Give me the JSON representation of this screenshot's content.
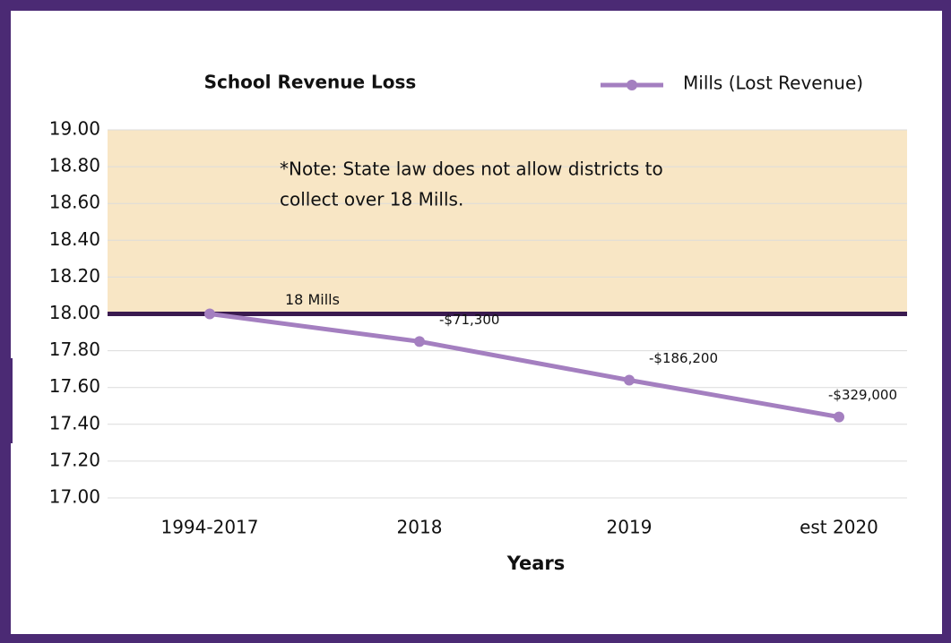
{
  "chart_data": {
    "type": "line",
    "title": "School Revenue Loss",
    "x_label": "Years",
    "categories": [
      "1994-2017",
      "2018",
      "2019",
      "est 2020"
    ],
    "series": [
      {
        "name": "Mills (Lost Revenue)",
        "color": "#a47fc0",
        "values": [
          18.0,
          17.85,
          17.64,
          17.44
        ]
      }
    ],
    "point_annotations": [
      null,
      "-$71,300",
      "-$186,200",
      "-$329,000"
    ],
    "ylim": [
      17,
      19
    ],
    "yticks": [
      {
        "value": 17,
        "label": "17.00"
      },
      {
        "value": 17.2,
        "label": "17.20"
      },
      {
        "value": 17.4,
        "label": "17.40"
      },
      {
        "value": 17.6,
        "label": "17.60"
      },
      {
        "value": 17.8,
        "label": "17.80"
      },
      {
        "value": 18,
        "label": "18.00"
      },
      {
        "value": 18.2,
        "label": "18.20"
      },
      {
        "value": 18.4,
        "label": "18.40"
      },
      {
        "value": 18.6,
        "label": "18.60"
      },
      {
        "value": 18.8,
        "label": "18.80"
      },
      {
        "value": 19,
        "label": "19.00"
      }
    ],
    "grid": true,
    "legend": "top-right",
    "shaded_range": {
      "from": 18,
      "to": 19,
      "color": "#f8e6c5"
    },
    "reference_line": {
      "value": 18,
      "label": "18 Mills",
      "color": "#3a1a4f"
    },
    "note": [
      "*Note: State law does not allow districts to",
      "collect over 18 Mills."
    ]
  }
}
